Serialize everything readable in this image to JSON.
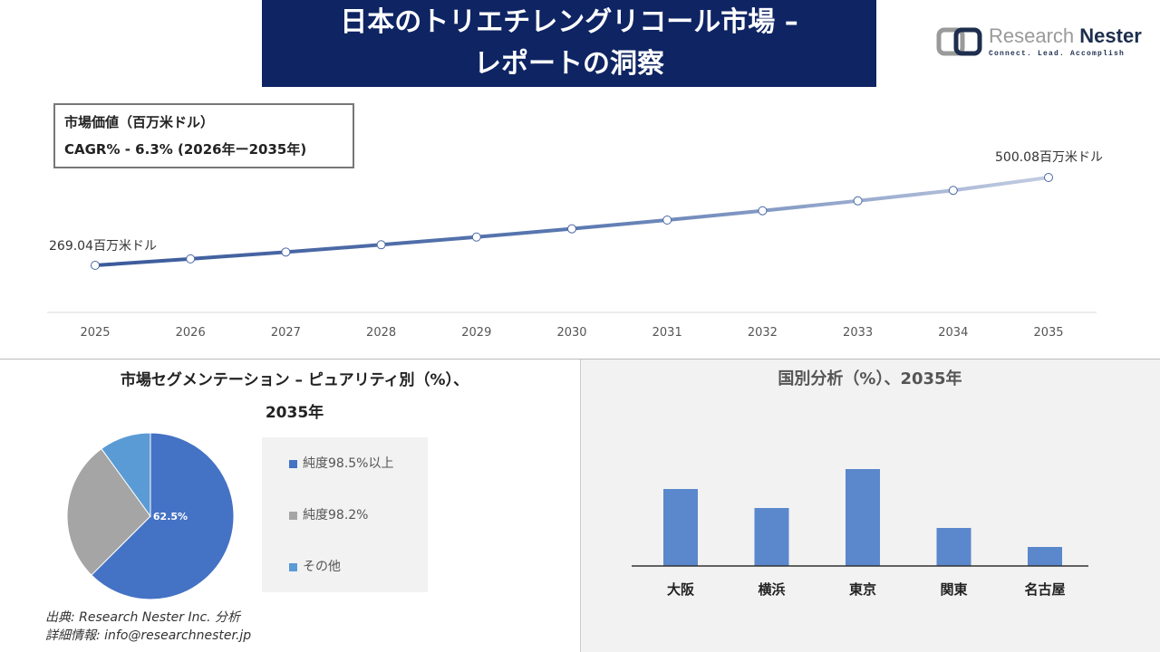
{
  "header": {
    "title": "日本のトリエチレングリコール市場 –\nレポートの洞察"
  },
  "logo": {
    "name_light": "Research ",
    "name_dark": "Nester",
    "tagline": "Connect. Lead. Accomplish"
  },
  "infobox": {
    "line1": "市場価値（百万米ドル）",
    "line2": "CAGR% - 6.3% (2026年ー2035年)"
  },
  "source": {
    "line1": "出典: Research Nester Inc. 分析",
    "line2": "詳細情報: info@researchnester.jp"
  },
  "colors": {
    "title_bg": "#0e2463",
    "line_start": "#3b5a9a",
    "line_end": "#c3cde2",
    "pie": [
      "#4472c4",
      "#a5a5a5",
      "#5b9bd5"
    ],
    "bar": "#5b87cc"
  },
  "chart_data": [
    {
      "type": "line",
      "x": [
        "2025",
        "2026",
        "2027",
        "2028",
        "2029",
        "2030",
        "2031",
        "2032",
        "2033",
        "2034",
        "2035"
      ],
      "values": [
        269.04,
        286.0,
        304.0,
        323.1,
        343.5,
        365.1,
        388.1,
        412.6,
        438.6,
        466.2,
        500.08
      ],
      "annotations": [
        {
          "x": "2025",
          "text": "269.04百万米ドル"
        },
        {
          "x": "2035",
          "text": "500.08百万米ドル"
        }
      ],
      "grid": false
    },
    {
      "type": "pie",
      "title": "市場セグメンテーション – ピュアリティ別（%）、\n2035年",
      "labels": [
        "純度98.5%以上",
        "純度98.2%",
        "その他"
      ],
      "values": [
        62.5,
        27.5,
        10
      ],
      "data_labels": [
        "62.5%"
      ],
      "legend": "right"
    },
    {
      "type": "bar",
      "title": "国別分析（%）、2035年",
      "categories": [
        "大阪",
        "横浜",
        "東京",
        "関東",
        "名古屋"
      ],
      "values": [
        85,
        64,
        107,
        42,
        21
      ]
    }
  ]
}
